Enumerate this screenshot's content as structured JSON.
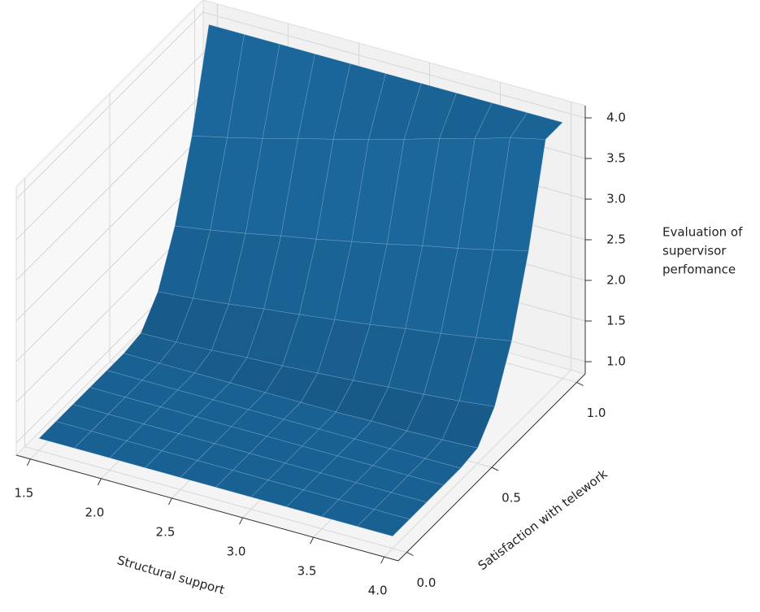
{
  "chart_data": {
    "type": "surface",
    "xlabel": "Structural support",
    "ylabel": "Satisfaction with telework",
    "zlabel": [
      "Evaluation of",
      "supervisor",
      "perfomance"
    ],
    "color": "#1f77b4",
    "x": [
      1.5,
      1.75,
      2.0,
      2.25,
      2.5,
      2.75,
      3.0,
      3.25,
      3.5,
      3.75,
      4.0
    ],
    "y": [
      0,
      0.1,
      0.2,
      0.3,
      0.4,
      0.5,
      0.6,
      0.7,
      0.8,
      0.9,
      1.0
    ],
    "z": [
      [
        1,
        1,
        1,
        1,
        1,
        1,
        1,
        1,
        1,
        1,
        1
      ],
      [
        1,
        1,
        1,
        1,
        1,
        1,
        1,
        1,
        1,
        1,
        1
      ],
      [
        1,
        1,
        1,
        1,
        1,
        1,
        1,
        1,
        1,
        1,
        1
      ],
      [
        1,
        1,
        1,
        1,
        1,
        1,
        1,
        1,
        1,
        1,
        1
      ],
      [
        1,
        1,
        1,
        1,
        1,
        1,
        1,
        1,
        1,
        1,
        1
      ],
      [
        1,
        1,
        1,
        1,
        1,
        1,
        1,
        1.01,
        1.01,
        1.02,
        1.04
      ],
      [
        1.04,
        1.05,
        1.07,
        1.1,
        1.12,
        1.15,
        1.18,
        1.22,
        1.25,
        1.29,
        1.34
      ],
      [
        1.34,
        1.38,
        1.43,
        1.49,
        1.54,
        1.6,
        1.66,
        1.73,
        1.79,
        1.86,
        1.94
      ],
      [
        1.94,
        2.01,
        2.09,
        2.18,
        2.26,
        2.35,
        2.44,
        2.54,
        2.63,
        2.73,
        2.84
      ],
      [
        2.84,
        2.94,
        3.05,
        3.17,
        3.28,
        3.4,
        3.52,
        3.65,
        3.77,
        3.9,
        4
      ],
      [
        4,
        4,
        4,
        4,
        4,
        4,
        4,
        4,
        4,
        4,
        4
      ]
    ],
    "xlim": [
      1.4,
      4.1
    ],
    "ylim": [
      -0.05,
      1.05
    ],
    "zlim": [
      0.85,
      4.15
    ],
    "xticks": [
      1.5,
      {
        "value": 2,
        "label": "2.0"
      },
      2.5,
      {
        "value": 3,
        "label": "3.0"
      },
      3.5,
      {
        "value": 4,
        "label": "4.0"
      }
    ],
    "yticks": [
      {
        "value": 0,
        "label": "0.0"
      },
      0.5,
      {
        "value": 1,
        "label": "1.0"
      }
    ],
    "zticks": [
      {
        "value": 1,
        "label": "1.0"
      },
      1.5,
      {
        "value": 2,
        "label": "2.0"
      },
      2.5,
      {
        "value": 3,
        "label": "3.0"
      },
      3.5,
      {
        "value": 4,
        "label": "4.0"
      }
    ],
    "grid": true
  }
}
